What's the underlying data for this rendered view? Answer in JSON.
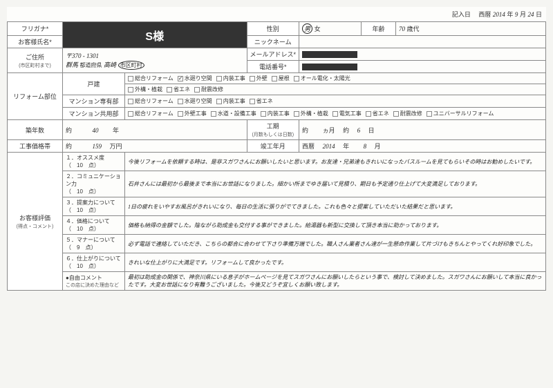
{
  "entryDate": {
    "label": "記入日",
    "era": "西暦",
    "year": "2014",
    "month": "9",
    "day": "24",
    "y": "年",
    "m": "月",
    "d": "日"
  },
  "furigana": {
    "label": "フリガナ*",
    "value": ""
  },
  "customerName": {
    "label": "お客様氏名*",
    "value": "S様"
  },
  "gender": {
    "label": "性別",
    "male": "男",
    "female": "女",
    "selected": "male"
  },
  "age": {
    "label": "年齢",
    "value": "70",
    "unit": "歳代"
  },
  "nickname": {
    "label": "ニックネーム",
    "value": ""
  },
  "address": {
    "label": "ご住所",
    "sub": "(市区町村まで)",
    "postal": "〒370 - 1301",
    "pref": "群馬",
    "prefLabel": "都道府県",
    "city": "高崎",
    "cityLabel": "市区町村"
  },
  "email": {
    "label": "メールアドレス*"
  },
  "phone": {
    "label": "電話番号*"
  },
  "reformPart": {
    "label": "リフォーム部位",
    "detached": {
      "label": "戸建",
      "opts": [
        "総合リフォーム",
        "水廻り空間",
        "内装工事",
        "外壁",
        "屋根",
        "オール電化・太陽光",
        "外構・植栽",
        "省エネ",
        "耐震改修"
      ],
      "checked": [
        1
      ]
    },
    "condoPrivate": {
      "label": "マンション専有部",
      "opts": [
        "総合リフォーム",
        "水廻り空間",
        "内装工事",
        "省エネ"
      ]
    },
    "condoCommon": {
      "label": "マンション共用部",
      "opts": [
        "総合リフォーム",
        "外壁工事",
        "水道・設備工事",
        "内装工事",
        "外構・植栽",
        "電気工事",
        "省エネ",
        "耐震改修",
        "ユニバーサルリフォーム"
      ]
    }
  },
  "buildAge": {
    "label": "築年数",
    "about": "約",
    "value": "40",
    "unit": "年"
  },
  "duration": {
    "label": "工期",
    "sub": "(月数もしくは日数)",
    "about": "約",
    "months": "",
    "mUnit": "ヵ月",
    "about2": "約",
    "days": "6",
    "dUnit": "日"
  },
  "price": {
    "label": "工事価格帯",
    "about": "約",
    "value": "159",
    "unit": "万円"
  },
  "completion": {
    "label": "竣工年月",
    "era": "西暦",
    "year": "2014",
    "y": "年",
    "month": "8",
    "m": "月"
  },
  "evaluation": {
    "label": "お客様評価",
    "sub": "(得点・コメント)",
    "items": [
      {
        "title": "１．オススメ度",
        "score": "（　10　点）",
        "text": "今後リフォームを依頼する時は、是非スガワさんにお願いしたいと思います。お友達・兄弟達もきれいになったバスルームを見てもらいその時はお勧めしたいです。"
      },
      {
        "title": "２．コミュニケーション力",
        "score": "（　10　点）",
        "text": "石井さんには最初から最後まで本当にお世話になりました。細かい所までゆき届いて見積り、期日も予定通り仕上げて大変満足しております。"
      },
      {
        "title": "３．提案力について",
        "score": "（　10　点）",
        "text": "1日の疲れをいやすお風呂がきれいになり、毎日の生活に張りがでてきました。これも色々と提案していただいた結果だと思います。"
      },
      {
        "title": "４．価格について",
        "score": "（　10　点）",
        "text": "価格も納得の金額でした。陰ながら助成金も交付する事ができました。給湯器も新型に交換して頂き本当に助かっております。"
      },
      {
        "title": "５．マナーについて",
        "score": "（　9　点）",
        "text": "必ず電話で連絡していただき、こちらの都合に合わせて下さり準備万端でした。職人さん業者さん達が一生懸命作業して片づけもきちんとやってくれ好印象でした。"
      },
      {
        "title": "６．仕上がりについて",
        "score": "（　10　点）",
        "text": "きれいな仕上がりに大満足です。リフォームして良かったです。"
      },
      {
        "title": "●自由コメント",
        "score": "この店に決めた理由など",
        "text": "最初は助成金の関係で、神奈川県にいる息子がホームページを見てスガワさんにお願いしたらという事で、検討して決めました。スガワさんにお願いして本当に良かったです。大変お世話になり有難うございました。今後又どうぞ宜しくお願い致します。"
      }
    ]
  }
}
